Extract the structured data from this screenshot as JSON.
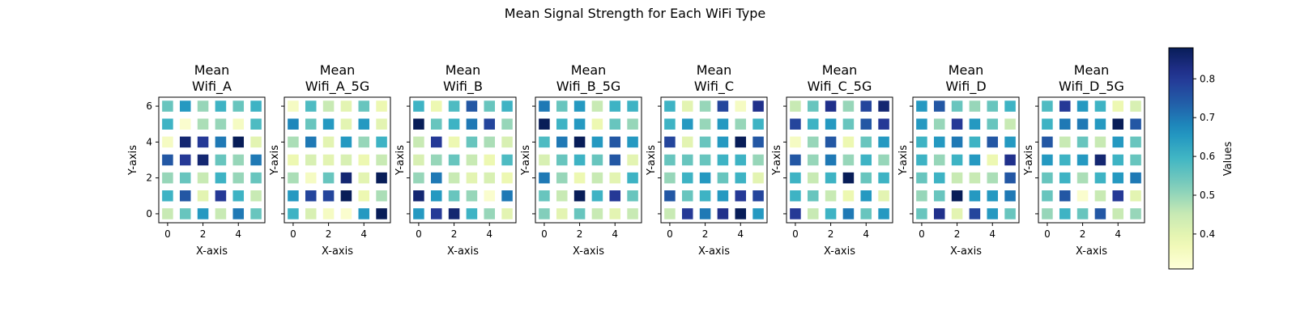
{
  "chart_data": {
    "type": "heatmap",
    "title": "Mean Signal Strength for Each WiFi Type",
    "xlabel": "X-axis",
    "ylabel": "Y-axis",
    "x_ticks": [
      0,
      2,
      4
    ],
    "y_ticks": [
      0,
      2,
      4,
      6
    ],
    "xlim": [
      -0.5,
      5.5
    ],
    "ylim": [
      -0.5,
      6.5
    ],
    "colorbar": {
      "label": "Values",
      "colormap": "YlGnBu",
      "vmin": 0.31,
      "vmax": 0.88,
      "ticks": [
        0.4,
        0.5,
        0.6,
        0.7,
        0.8
      ]
    },
    "panels": [
      {
        "title_line1": "Mean",
        "title_line2": "Wifi_A",
        "z_rows_from_y0": [
          [
            0.45,
            0.55,
            0.65,
            0.45,
            0.7,
            0.55
          ],
          [
            0.6,
            0.75,
            0.4,
            0.8,
            0.6,
            0.45
          ],
          [
            0.5,
            0.55,
            0.45,
            0.6,
            0.5,
            0.55
          ],
          [
            0.75,
            0.8,
            0.85,
            0.55,
            0.5,
            0.7
          ],
          [
            0.35,
            0.85,
            0.8,
            0.7,
            0.88,
            0.4
          ],
          [
            0.6,
            0.33,
            0.48,
            0.5,
            0.35,
            0.58
          ],
          [
            0.55,
            0.65,
            0.5,
            0.6,
            0.55,
            0.6
          ]
        ]
      },
      {
        "title_line1": "Mean",
        "title_line2": "Wifi_A_5G",
        "z_rows_from_y0": [
          [
            0.6,
            0.42,
            0.35,
            0.33,
            0.65,
            0.88
          ],
          [
            0.65,
            0.78,
            0.78,
            0.88,
            0.38,
            0.48
          ],
          [
            0.48,
            0.35,
            0.55,
            0.85,
            0.4,
            0.88
          ],
          [
            0.38,
            0.42,
            0.4,
            0.42,
            0.38,
            0.45
          ],
          [
            0.48,
            0.7,
            0.4,
            0.65,
            0.5,
            0.6
          ],
          [
            0.68,
            0.55,
            0.65,
            0.4,
            0.65,
            0.4
          ],
          [
            0.35,
            0.58,
            0.45,
            0.4,
            0.55,
            0.38
          ]
        ]
      },
      {
        "title_line1": "Mean",
        "title_line2": "Wifi_B",
        "z_rows_from_y0": [
          [
            0.65,
            0.8,
            0.85,
            0.6,
            0.5,
            0.4
          ],
          [
            0.85,
            0.65,
            0.55,
            0.5,
            0.33,
            0.7
          ],
          [
            0.5,
            0.7,
            0.45,
            0.4,
            0.42,
            0.38
          ],
          [
            0.42,
            0.5,
            0.55,
            0.45,
            0.38,
            0.58
          ],
          [
            0.45,
            0.8,
            0.38,
            0.55,
            0.48,
            0.42
          ],
          [
            0.88,
            0.55,
            0.6,
            0.7,
            0.78,
            0.5
          ],
          [
            0.6,
            0.38,
            0.58,
            0.75,
            0.55,
            0.6
          ]
        ]
      },
      {
        "title_line1": "Mean",
        "title_line2": "Wifi_B_5G",
        "z_rows_from_y0": [
          [
            0.52,
            0.4,
            0.55,
            0.45,
            0.4,
            0.45
          ],
          [
            0.55,
            0.45,
            0.88,
            0.6,
            0.8,
            0.55
          ],
          [
            0.7,
            0.5,
            0.38,
            0.45,
            0.4,
            0.6
          ],
          [
            0.42,
            0.55,
            0.6,
            0.55,
            0.75,
            0.4
          ],
          [
            0.58,
            0.7,
            0.88,
            0.65,
            0.75,
            0.65
          ],
          [
            0.88,
            0.6,
            0.65,
            0.38,
            0.55,
            0.5
          ],
          [
            0.7,
            0.55,
            0.65,
            0.45,
            0.6,
            0.6
          ]
        ]
      },
      {
        "title_line1": "Mean",
        "title_line2": "Wifi_C",
        "z_rows_from_y0": [
          [
            0.45,
            0.8,
            0.7,
            0.82,
            0.88,
            0.65
          ],
          [
            0.75,
            0.55,
            0.6,
            0.65,
            0.8,
            0.78
          ],
          [
            0.5,
            0.6,
            0.65,
            0.55,
            0.6,
            0.4
          ],
          [
            0.55,
            0.55,
            0.55,
            0.6,
            0.6,
            0.5
          ],
          [
            0.78,
            0.4,
            0.55,
            0.65,
            0.88,
            0.75
          ],
          [
            0.6,
            0.65,
            0.5,
            0.65,
            0.5,
            0.6
          ],
          [
            0.6,
            0.4,
            0.5,
            0.78,
            0.35,
            0.82
          ]
        ]
      },
      {
        "title_line1": "Mean",
        "title_line2": "Wifi_C_5G",
        "z_rows_from_y0": [
          [
            0.8,
            0.45,
            0.6,
            0.7,
            0.55,
            0.65
          ],
          [
            0.6,
            0.55,
            0.45,
            0.38,
            0.65,
            0.4
          ],
          [
            0.6,
            0.45,
            0.6,
            0.88,
            0.55,
            0.6
          ],
          [
            0.75,
            0.5,
            0.7,
            0.5,
            0.6,
            0.5
          ],
          [
            0.35,
            0.5,
            0.75,
            0.38,
            0.55,
            0.65
          ],
          [
            0.78,
            0.6,
            0.65,
            0.55,
            0.75,
            0.8
          ],
          [
            0.45,
            0.55,
            0.82,
            0.5,
            0.78,
            0.85
          ]
        ]
      },
      {
        "title_line1": "Mean",
        "title_line2": "Wifi_D",
        "z_rows_from_y0": [
          [
            0.55,
            0.82,
            0.4,
            0.78,
            0.65,
            0.55
          ],
          [
            0.5,
            0.55,
            0.88,
            0.65,
            0.65,
            0.7
          ],
          [
            0.55,
            0.6,
            0.45,
            0.45,
            0.48,
            0.75
          ],
          [
            0.6,
            0.5,
            0.6,
            0.65,
            0.38,
            0.82
          ],
          [
            0.6,
            0.65,
            0.7,
            0.6,
            0.75,
            0.65
          ],
          [
            0.65,
            0.5,
            0.8,
            0.65,
            0.55,
            0.45
          ],
          [
            0.65,
            0.75,
            0.55,
            0.5,
            0.55,
            0.6
          ]
        ]
      },
      {
        "title_line1": "Mean",
        "title_line2": "Wifi_D_5G",
        "z_rows_from_y0": [
          [
            0.5,
            0.6,
            0.55,
            0.75,
            0.45,
            0.5
          ],
          [
            0.55,
            0.75,
            0.33,
            0.45,
            0.8,
            0.4
          ],
          [
            0.55,
            0.6,
            0.48,
            0.6,
            0.65,
            0.7
          ],
          [
            0.65,
            0.6,
            0.65,
            0.85,
            0.6,
            0.55
          ],
          [
            0.75,
            0.45,
            0.55,
            0.45,
            0.65,
            0.55
          ],
          [
            0.6,
            0.7,
            0.7,
            0.65,
            0.88,
            0.75
          ],
          [
            0.58,
            0.8,
            0.65,
            0.6,
            0.38,
            0.42
          ]
        ]
      }
    ]
  }
}
